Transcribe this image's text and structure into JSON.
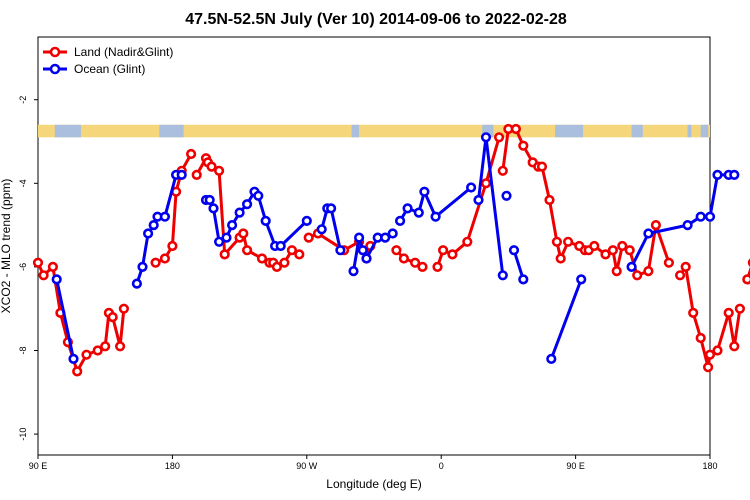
{
  "chart_data": {
    "type": "line",
    "title": "47.5N-52.5N July (Ver 10)   2014-09-06 to 2022-02-28",
    "xlabel": "Longitude (deg E)",
    "ylabel": "XCO2 - MLO trend (ppm)",
    "xlim": [
      90,
      450
    ],
    "ylim": [
      -10.5,
      -0.5
    ],
    "x_ticks": [
      {
        "value": 90,
        "label": "90 E"
      },
      {
        "value": 180,
        "label": "180"
      },
      {
        "value": 270,
        "label": "90 W"
      },
      {
        "value": 360,
        "label": "0"
      },
      {
        "value": 450,
        "label": "90 E"
      },
      {
        "value": 540,
        "label": "180"
      }
    ],
    "y_ticks": [
      {
        "value": -2,
        "label": "-2"
      },
      {
        "value": -4,
        "label": "-4"
      },
      {
        "value": -6,
        "label": "-6"
      },
      {
        "value": -8,
        "label": "-8"
      },
      {
        "value": -10,
        "label": "-10"
      }
    ],
    "legend_position": "top-left",
    "land_ocean_band": {
      "y_range": [
        -2.9,
        -2.6
      ],
      "land_color": "#f5d67a",
      "ocean_color": "#a9bfdd",
      "ocean_spans": [
        [
          99,
          113
        ],
        [
          155,
          168
        ],
        [
          258,
          262
        ],
        [
          328,
          334
        ],
        [
          367,
          382
        ],
        [
          408,
          414
        ],
        [
          438,
          440
        ],
        [
          445,
          449
        ]
      ]
    },
    "series": [
      {
        "name": "Land (Nadir&Glint)",
        "color": "#ee0000",
        "x": [
          90,
          93,
          98,
          102,
          106,
          111,
          116,
          122,
          126,
          128,
          130,
          134,
          136,
          153,
          158,
          162,
          164,
          167,
          172,
          175,
          180,
          181,
          183,
          187,
          190,
          198,
          200,
          202,
          210,
          214,
          216,
          218,
          222,
          226,
          230,
          235,
          240,
          254,
          262,
          266,
          268,
          282,
          286,
          292,
          296,
          304,
          307,
          312,
          320,
          330,
          337,
          339,
          342,
          346,
          350,
          355,
          358,
          360,
          364,
          368,
          370,
          374,
          380,
          383,
          385,
          388,
          394,
          398,
          400,
          403,
          407,
          411,
          417,
          421,
          428,
          434,
          437,
          441,
          445,
          449,
          450,
          454,
          460,
          463,
          466,
          470,
          473,
          476,
          479,
          483,
          487,
          493,
          496
        ],
        "values": [
          -5.9,
          -6.2,
          -6.0,
          -7.1,
          -7.8,
          -8.5,
          -8.1,
          -8.0,
          -7.9,
          -7.1,
          -7.2,
          -7.9,
          -7.0,
          -5.9,
          -5.8,
          -5.5,
          -4.2,
          -3.7,
          -3.3,
          -3.8,
          -3.4,
          -3.5,
          -3.6,
          -3.7,
          -5.7,
          -5.3,
          -5.2,
          -5.6,
          -5.8,
          -5.9,
          -5.9,
          -6.0,
          -5.9,
          -5.6,
          -5.7,
          -5.3,
          -5.2,
          -5.6,
          -5.4,
          -5.8,
          -5.5,
          -5.6,
          -5.8,
          -5.9,
          -6.0,
          -6.0,
          -5.6,
          -5.7,
          -5.4,
          -4.0,
          -2.9,
          -3.7,
          -2.7,
          -2.7,
          -3.1,
          -3.5,
          -3.6,
          -3.6,
          -4.4,
          -5.4,
          -5.8,
          -5.4,
          -5.5,
          -5.6,
          -5.6,
          -5.5,
          -5.7,
          -5.6,
          -6.1,
          -5.5,
          -5.6,
          -6.2,
          -6.1,
          -5.0,
          -5.9,
          -6.2,
          -6.0,
          -7.1,
          -7.7,
          -8.4,
          -8.1,
          -8.0,
          -7.1,
          -7.9,
          -7.0,
          -6.3,
          -5.9,
          -5.7,
          -5.5,
          -5.3,
          -5.1,
          -4.2,
          -3.8
        ],
        "groups": [
          [
            0,
            12
          ],
          [
            13,
            18
          ],
          [
            19,
            25
          ],
          [
            26,
            28
          ],
          [
            29,
            34
          ],
          [
            35,
            40
          ],
          [
            41,
            44
          ],
          [
            45,
            50
          ],
          [
            51,
            63
          ],
          [
            64,
            74
          ],
          [
            75,
            84
          ],
          [
            85,
            92
          ]
        ]
      },
      {
        "name": "Ocean (Glint)",
        "color": "#0000ee",
        "x": [
          100,
          109,
          143,
          146,
          149,
          152,
          154,
          158,
          164,
          167,
          180,
          182,
          184,
          187,
          191,
          194,
          198,
          202,
          206,
          208,
          212,
          217,
          220,
          234,
          242,
          245,
          247,
          252,
          259,
          262,
          264,
          266,
          272,
          276,
          280,
          284,
          288,
          294,
          297,
          303,
          322,
          326,
          330,
          339,
          341,
          345,
          350,
          365,
          381,
          408,
          417,
          438,
          445,
          450,
          454,
          460,
          463
        ],
        "values": [
          -6.3,
          -8.2,
          -6.4,
          -6.0,
          -5.2,
          -5.0,
          -4.8,
          -4.8,
          -3.8,
          -3.8,
          -4.4,
          -4.4,
          -4.6,
          -5.4,
          -5.3,
          -5.0,
          -4.7,
          -4.5,
          -4.2,
          -4.3,
          -4.9,
          -5.5,
          -5.5,
          -4.9,
          -5.1,
          -4.6,
          -4.6,
          -5.6,
          -6.1,
          -5.3,
          -5.6,
          -5.8,
          -5.3,
          -5.3,
          -5.2,
          -4.9,
          -4.6,
          -4.7,
          -4.2,
          -4.8,
          -4.1,
          -4.4,
          -2.9,
          -6.2,
          -4.3,
          -5.6,
          -6.3,
          -8.2,
          -6.3,
          -6.0,
          -5.2,
          -5.0,
          -4.8,
          -4.8,
          -3.8,
          -3.8,
          -3.8
        ],
        "groups": [
          [
            0,
            1
          ],
          [
            2,
            9
          ],
          [
            10,
            23
          ],
          [
            24,
            27
          ],
          [
            28,
            34
          ],
          [
            35,
            40
          ],
          [
            41,
            43
          ],
          [
            44,
            44
          ],
          [
            45,
            46
          ],
          [
            47,
            48
          ],
          [
            49,
            56
          ]
        ]
      }
    ]
  }
}
